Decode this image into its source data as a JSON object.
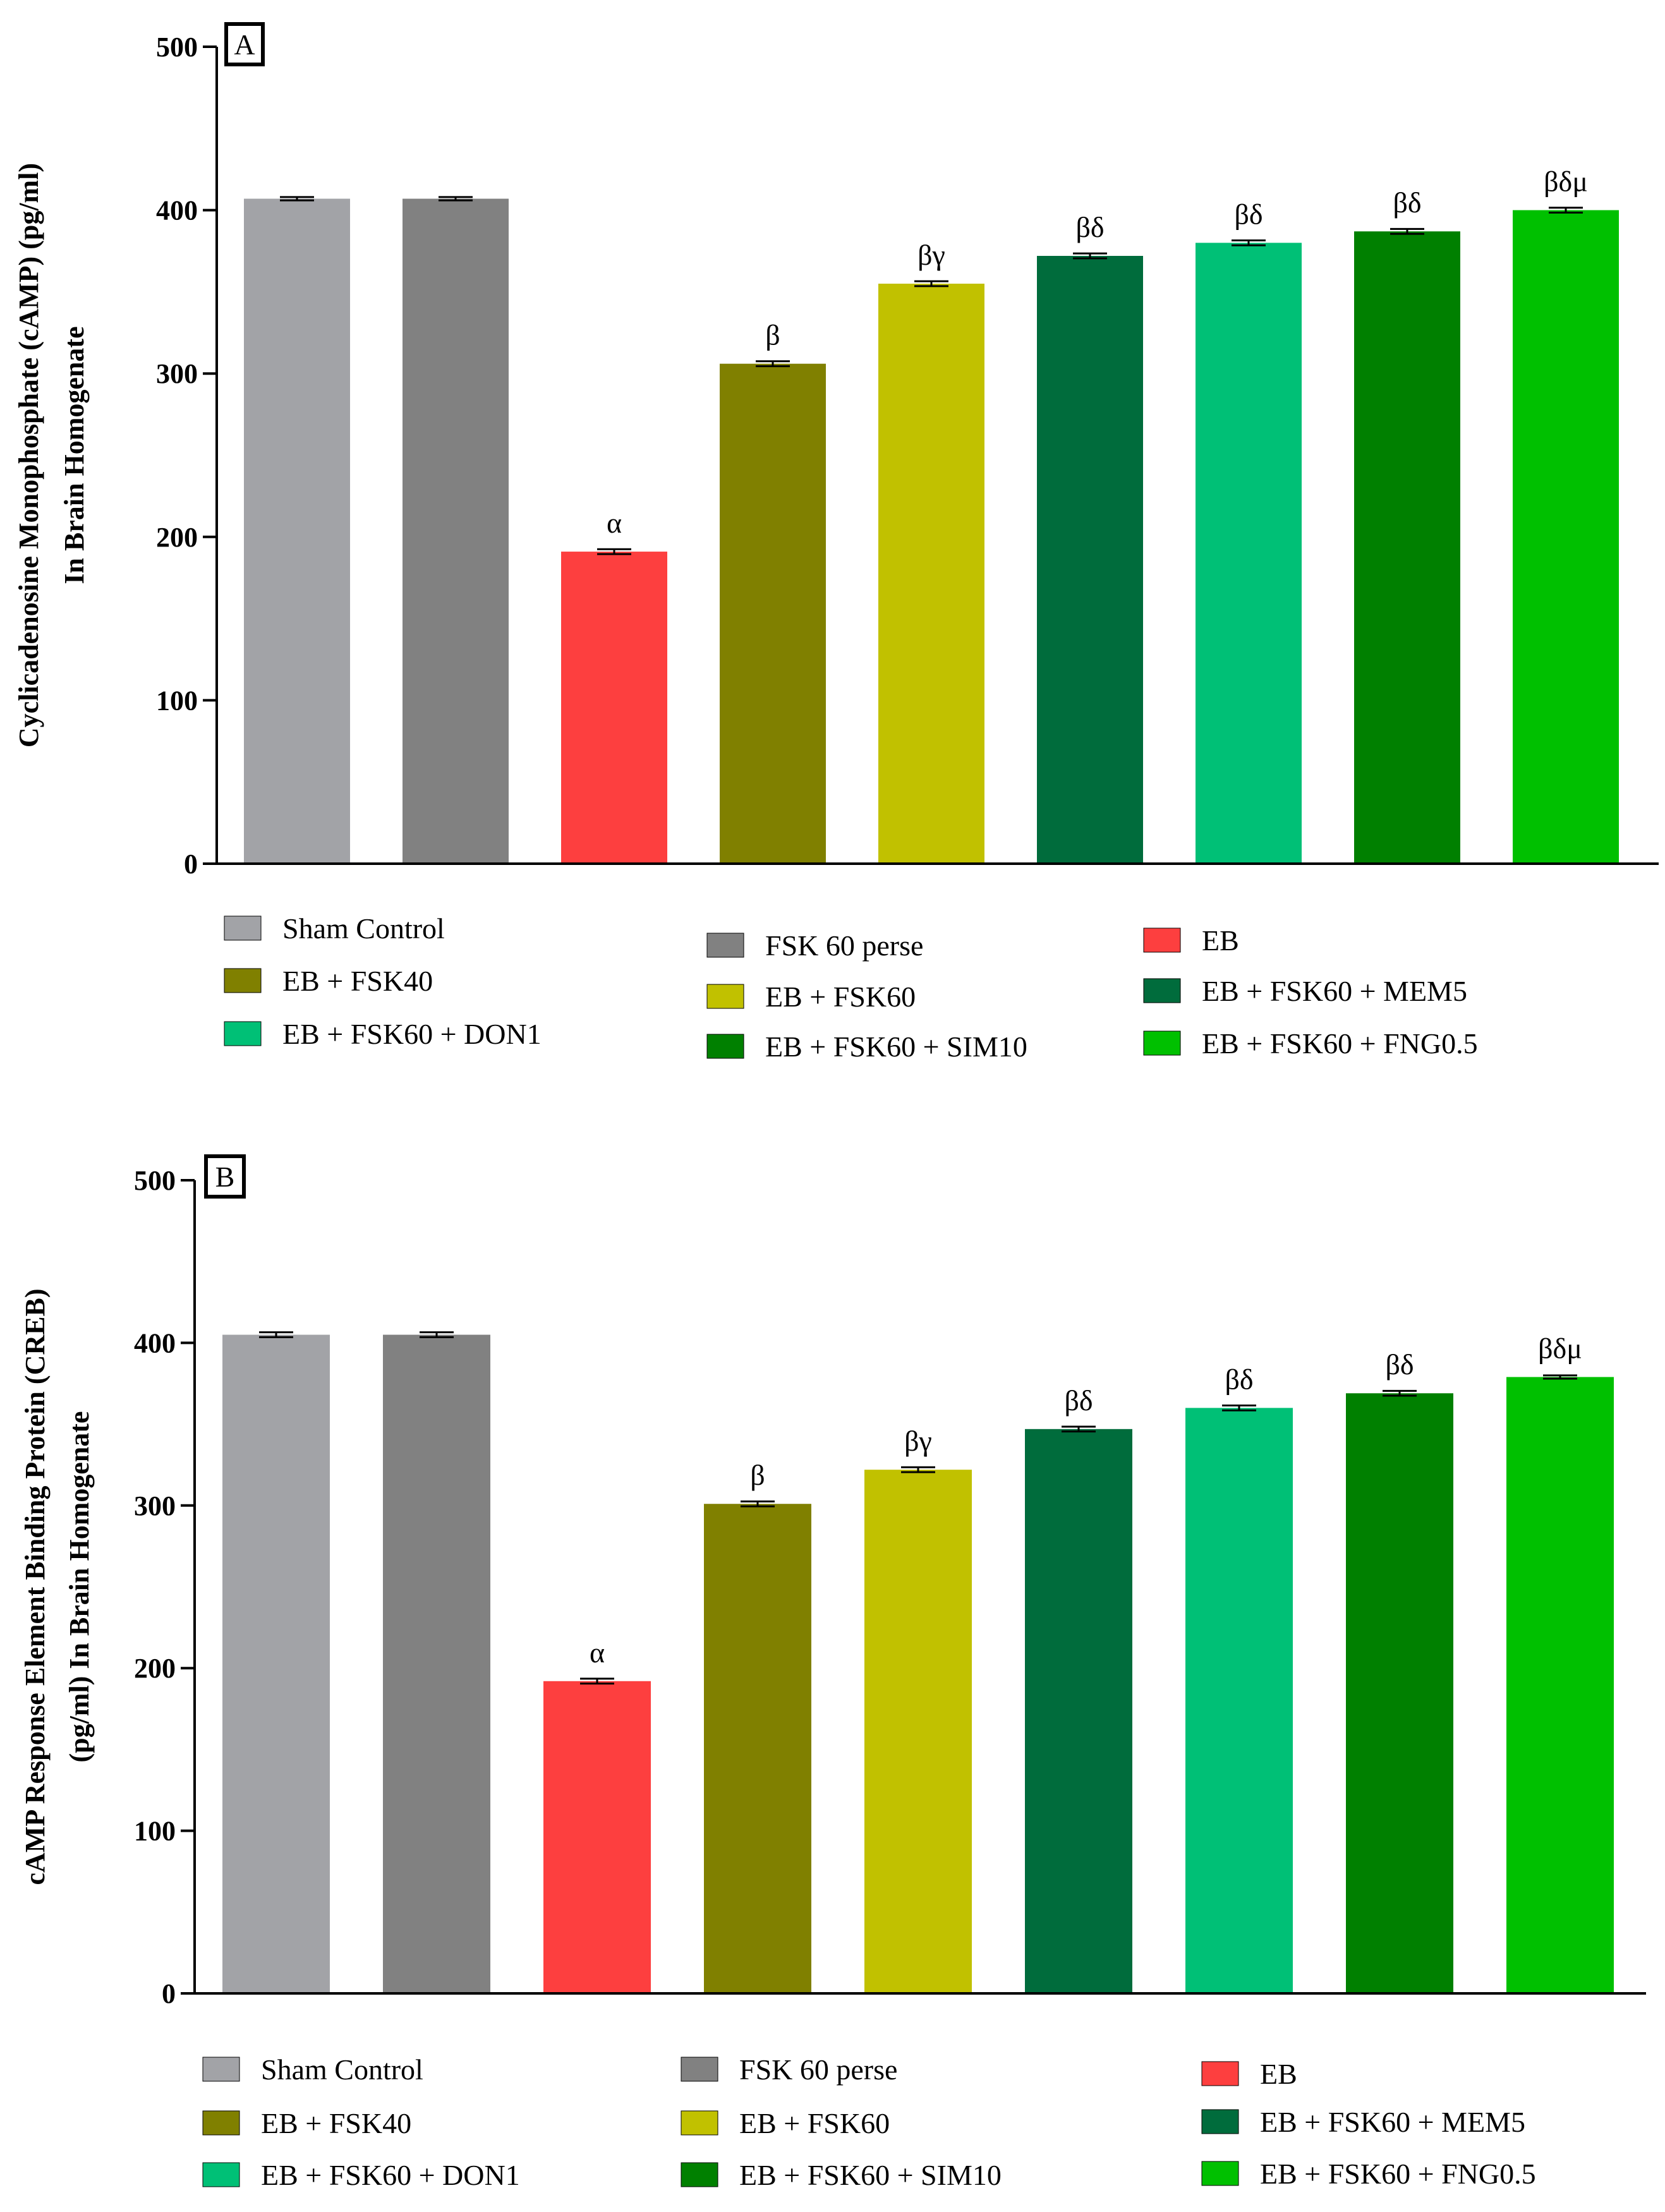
{
  "chart_data": [
    {
      "type": "bar",
      "panel": "A",
      "ylabel_lines": [
        "Cyclicadenosine Monophosphate (cAMP) (pg/ml)",
        "In Brain  Homogenate"
      ],
      "ylim": [
        0,
        500
      ],
      "yticks": [
        0,
        100,
        200,
        300,
        400,
        500
      ],
      "categories": [
        "Sham Control",
        "FSK 60 perse",
        "EB",
        "EB + FSK40",
        "EB + FSK60",
        "EB + FSK60 + MEM5",
        "EB + FSK60 + DON1",
        "EB + FSK60 + SIM10",
        "EB + FSK60 + FNG0.5"
      ],
      "values": [
        407,
        407,
        191,
        306,
        355,
        372,
        380,
        387,
        400
      ],
      "errors": [
        1,
        1,
        1.5,
        1.5,
        1.5,
        1.5,
        1.5,
        1.5,
        1.5
      ],
      "annotations": [
        "",
        "",
        "α",
        "β",
        "βγ",
        "βδ",
        "βδ",
        "βδ",
        "βδμ"
      ],
      "colors": [
        "#a2a3a7",
        "#818181",
        "#fd3f3f",
        "#808000",
        "#c1c100",
        "#006c3c",
        "#00c076",
        "#008000",
        "#00c000"
      ],
      "legend": [
        "Sham Control",
        "FSK 60 perse",
        "EB",
        "EB + FSK40",
        "EB + FSK60",
        "EB + FSK60 + MEM5",
        "EB + FSK60 + DON1",
        "EB + FSK60 + SIM10",
        "EB + FSK60 + FNG0.5"
      ]
    },
    {
      "type": "bar",
      "panel": "B",
      "ylabel_lines": [
        "cAMP Response Element Binding Protein (CREB)",
        "(pg/ml) In Brain Homogenate"
      ],
      "ylim": [
        0,
        500
      ],
      "yticks": [
        0,
        100,
        200,
        300,
        400,
        500
      ],
      "categories": [
        "Sham Control",
        "FSK 60 perse",
        "EB",
        "EB + FSK40",
        "EB + FSK60",
        "EB + FSK60 + MEM5",
        "EB + FSK60 + DON1",
        "EB + FSK60 + SIM10",
        "EB + FSK60 + FNG0.5"
      ],
      "values": [
        405,
        405,
        192,
        301,
        322,
        347,
        360,
        369,
        379
      ],
      "errors": [
        1.5,
        1.5,
        1.5,
        1.5,
        1.5,
        1.5,
        1.5,
        1.5,
        1
      ],
      "annotations": [
        "",
        "",
        "α",
        "β",
        "βγ",
        "βδ",
        "βδ",
        "βδ",
        "βδμ"
      ],
      "colors": [
        "#a2a3a7",
        "#818181",
        "#fd3f3f",
        "#808000",
        "#c1c100",
        "#006c3c",
        "#00c076",
        "#008000",
        "#00c000"
      ],
      "legend": [
        "Sham Control",
        "FSK 60 perse",
        "EB",
        "EB + FSK40",
        "EB + FSK60",
        "EB + FSK60 + MEM5",
        "EB + FSK60 + DON1",
        "EB + FSK60 + SIM10",
        "EB + FSK60 + FNG0.5"
      ]
    }
  ]
}
